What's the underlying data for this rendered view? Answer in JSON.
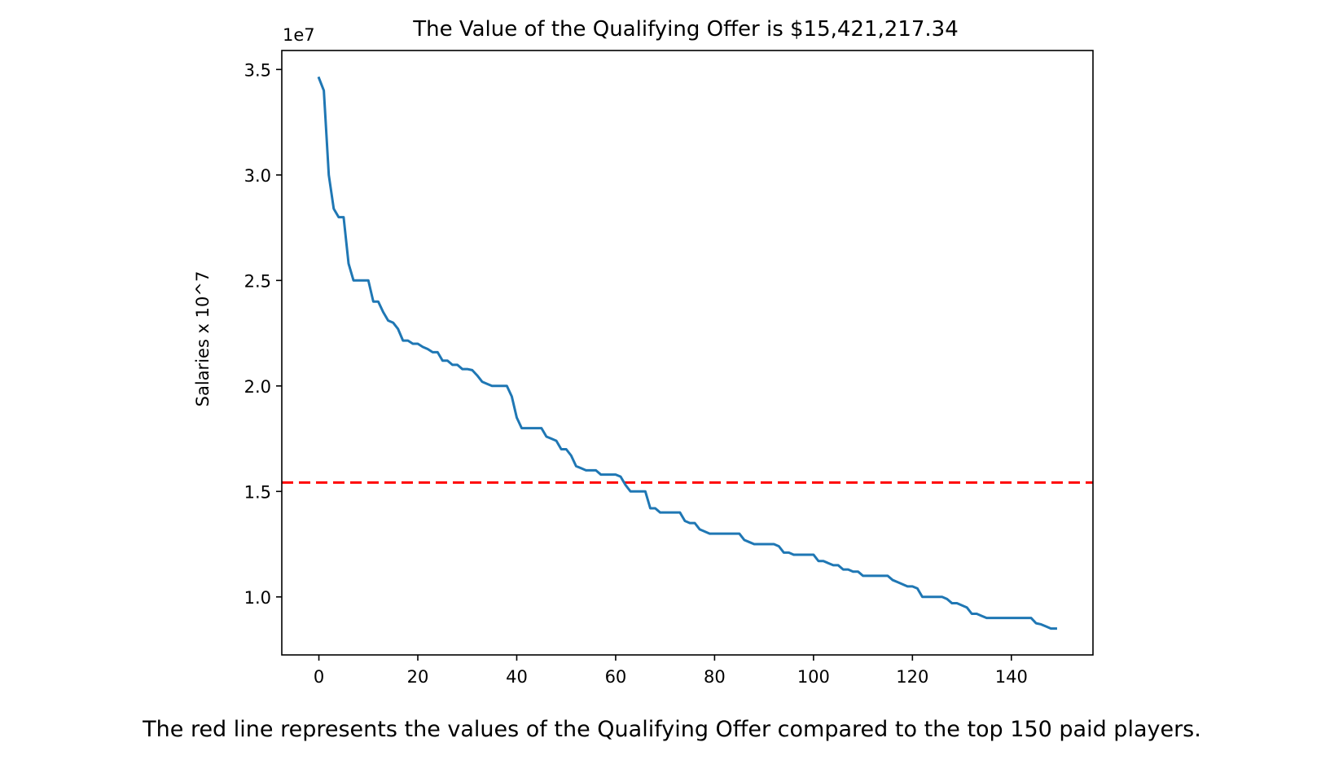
{
  "chart_data": {
    "type": "line",
    "title": "The Value of the Qualifying Offer is $15,421,217.34",
    "xlabel": "",
    "ylabel": "Salaries x 10^7",
    "y_offset_label": "1e7",
    "caption": "The red line represents the values of the Qualifying Offer compared to the top 150 paid players.",
    "xlim": [
      -7.5,
      156.5
    ],
    "ylim": [
      0.725,
      3.59
    ],
    "x_ticks": [
      0,
      20,
      40,
      60,
      80,
      100,
      120,
      140
    ],
    "x_tick_labels": [
      "0",
      "20",
      "40",
      "60",
      "80",
      "100",
      "120",
      "140"
    ],
    "y_ticks": [
      1.0,
      1.5,
      2.0,
      2.5,
      3.0,
      3.5
    ],
    "y_tick_labels": [
      "1.0",
      "1.5",
      "2.0",
      "2.5",
      "3.0",
      "3.5"
    ],
    "grid": false,
    "series": [
      {
        "color": "#1f77b4",
        "style": "solid",
        "x": [
          0,
          1,
          2,
          3,
          4,
          5,
          6,
          7,
          8,
          9,
          10,
          11,
          12,
          13,
          14,
          15,
          16,
          17,
          18,
          19,
          20,
          21,
          22,
          23,
          24,
          25,
          26,
          27,
          28,
          29,
          30,
          31,
          32,
          33,
          34,
          35,
          36,
          37,
          38,
          39,
          40,
          41,
          42,
          43,
          44,
          45,
          46,
          47,
          48,
          49,
          50,
          51,
          52,
          53,
          54,
          55,
          56,
          57,
          58,
          59,
          60,
          61,
          62,
          63,
          64,
          65,
          66,
          67,
          68,
          69,
          70,
          71,
          72,
          73,
          74,
          75,
          76,
          77,
          78,
          79,
          80,
          81,
          82,
          83,
          84,
          85,
          86,
          87,
          88,
          89,
          90,
          91,
          92,
          93,
          94,
          95,
          96,
          97,
          98,
          99,
          100,
          101,
          102,
          103,
          104,
          105,
          106,
          107,
          108,
          109,
          110,
          111,
          112,
          113,
          114,
          115,
          116,
          117,
          118,
          119,
          120,
          121,
          122,
          123,
          124,
          125,
          126,
          127,
          128,
          129,
          130,
          131,
          132,
          133,
          134,
          135,
          136,
          137,
          138,
          139,
          140,
          141,
          142,
          143,
          144,
          145,
          146,
          147,
          148,
          149
        ],
        "values": [
          3.46,
          3.4,
          3.0,
          2.84,
          2.8,
          2.8,
          2.58,
          2.5,
          2.5,
          2.5,
          2.5,
          2.4,
          2.4,
          2.35,
          2.31,
          2.3,
          2.27,
          2.215,
          2.215,
          2.2,
          2.2,
          2.185,
          2.175,
          2.16,
          2.16,
          2.12,
          2.12,
          2.1,
          2.1,
          2.08,
          2.08,
          2.075,
          2.05,
          2.02,
          2.01,
          2.0,
          2.0,
          2.0,
          2.0,
          1.95,
          1.85,
          1.8,
          1.8,
          1.8,
          1.8,
          1.8,
          1.76,
          1.75,
          1.74,
          1.7,
          1.7,
          1.67,
          1.62,
          1.61,
          1.6,
          1.6,
          1.6,
          1.58,
          1.58,
          1.58,
          1.58,
          1.57,
          1.53,
          1.5,
          1.5,
          1.5,
          1.5,
          1.42,
          1.42,
          1.4,
          1.4,
          1.4,
          1.4,
          1.4,
          1.36,
          1.35,
          1.35,
          1.32,
          1.31,
          1.3,
          1.3,
          1.3,
          1.3,
          1.3,
          1.3,
          1.3,
          1.27,
          1.26,
          1.25,
          1.25,
          1.25,
          1.25,
          1.25,
          1.24,
          1.21,
          1.21,
          1.2,
          1.2,
          1.2,
          1.2,
          1.2,
          1.17,
          1.17,
          1.16,
          1.15,
          1.15,
          1.13,
          1.13,
          1.12,
          1.12,
          1.1,
          1.1,
          1.1,
          1.1,
          1.1,
          1.1,
          1.08,
          1.07,
          1.06,
          1.05,
          1.05,
          1.04,
          1.0,
          1.0,
          1.0,
          1.0,
          1.0,
          0.99,
          0.97,
          0.97,
          0.96,
          0.95,
          0.92,
          0.92,
          0.91,
          0.9,
          0.9,
          0.9,
          0.9,
          0.9,
          0.9,
          0.9,
          0.9,
          0.9,
          0.9,
          0.875,
          0.87,
          0.86,
          0.85,
          0.85
        ]
      }
    ],
    "reference_lines": [
      {
        "type": "horizontal",
        "y": 1.542121734,
        "color": "#ff0000",
        "style": "dashed"
      }
    ]
  }
}
